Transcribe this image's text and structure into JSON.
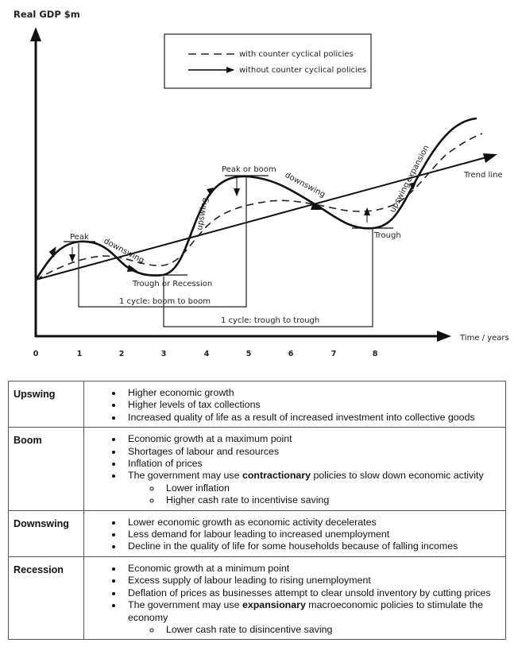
{
  "diagram": {
    "y_axis_label": "Real GDP $m",
    "x_axis_label": "Time / years",
    "x_ticks": [
      "0",
      "1",
      "2",
      "3",
      "4",
      "5",
      "6",
      "7",
      "8"
    ],
    "legend": {
      "dashed": "with counter cyclical policies",
      "solid": "without counter cyclical policies"
    },
    "labels": {
      "trend_line": "Trend line",
      "peak": "Peak",
      "peak_or_boom": "Peak or boom",
      "trough_or_recession": "Trough or Recession",
      "trough": "Trough",
      "downswing": "downswing",
      "upswing": "upswing",
      "expansion": "expansion",
      "cycle_boom": "1 cycle: boom to boom",
      "cycle_trough": "1 cycle: trough to trough"
    }
  },
  "phases": [
    {
      "name": "Upswing",
      "points": [
        {
          "text": "Higher economic growth"
        },
        {
          "text": "Higher levels of tax collections"
        },
        {
          "text": "Increased quality of life as a result of increased investment into collective goods"
        }
      ]
    },
    {
      "name": "Boom",
      "points": [
        {
          "text": "Economic growth at a maximum point"
        },
        {
          "text": "Shortages of labour and resources"
        },
        {
          "text": "Inflation of prices"
        },
        {
          "pre": "The government may use ",
          "bold": "contractionary",
          "post": " policies to slow down economic activity",
          "sub": [
            "Lower inflation",
            "Higher cash rate to incentivise saving"
          ]
        }
      ]
    },
    {
      "name": "Downswing",
      "points": [
        {
          "text": "Lower economic growth as economic activity decelerates"
        },
        {
          "text": "Less demand for labour leading to increased unemployment"
        },
        {
          "text": "Decline in the quality of life for some households because of falling incomes"
        }
      ]
    },
    {
      "name": "Recession",
      "points": [
        {
          "text": "Economic growth at a minimum point"
        },
        {
          "text": "Excess supply of labour leading to rising unemployment"
        },
        {
          "text": "Deflation of prices as businesses attempt to clear unsold inventory by cutting prices"
        },
        {
          "pre": "The government may use ",
          "bold": "expansionary",
          "post": " macroeconomic policies to stimulate the economy",
          "sub": [
            "Lower cash rate to disincentive saving"
          ]
        }
      ]
    }
  ]
}
